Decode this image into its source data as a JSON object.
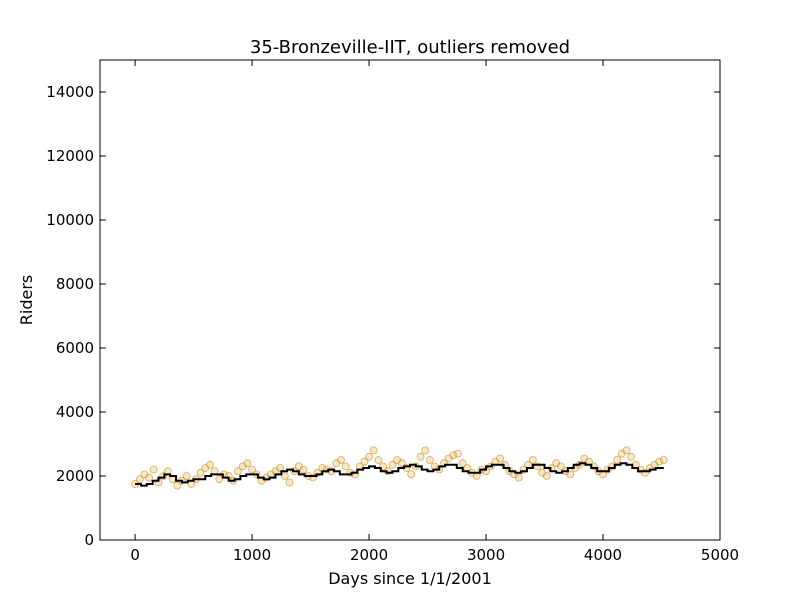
{
  "chart_data": {
    "type": "scatter",
    "title": "35-Bronzeville-IIT, outliers removed",
    "xlabel": "Days since 1/1/2001",
    "ylabel": "Riders",
    "xlim": [
      -300,
      5000
    ],
    "ylim": [
      0,
      15000
    ],
    "xticks": [
      0,
      1000,
      2000,
      3000,
      4000,
      5000
    ],
    "yticks": [
      0,
      2000,
      4000,
      6000,
      8000,
      10000,
      12000,
      14000
    ],
    "grid": false,
    "legend": "none",
    "colors": {
      "scatter_fill": "#f5b94a",
      "scatter_edge": "#a06a00",
      "trend_line": "#000000"
    },
    "series": [
      {
        "kind": "scatter",
        "x": [
          0,
          40,
          80,
          120,
          160,
          200,
          240,
          280,
          320,
          360,
          400,
          440,
          480,
          520,
          560,
          600,
          640,
          680,
          720,
          760,
          800,
          840,
          880,
          920,
          960,
          1000,
          1040,
          1080,
          1120,
          1160,
          1200,
          1240,
          1280,
          1320,
          1360,
          1400,
          1440,
          1480,
          1520,
          1560,
          1600,
          1640,
          1680,
          1720,
          1760,
          1800,
          1840,
          1880,
          1920,
          1960,
          2000,
          2040,
          2080,
          2120,
          2160,
          2200,
          2240,
          2280,
          2320,
          2360,
          2400,
          2440,
          2480,
          2520,
          2560,
          2600,
          2640,
          2680,
          2720,
          2760,
          2800,
          2840,
          2880,
          2920,
          2960,
          3000,
          3040,
          3080,
          3120,
          3160,
          3200,
          3240,
          3280,
          3320,
          3360,
          3400,
          3440,
          3480,
          3520,
          3560,
          3600,
          3640,
          3680,
          3720,
          3760,
          3800,
          3840,
          3880,
          3920,
          3960,
          4000,
          4040,
          4080,
          4120,
          4160,
          4200,
          4240,
          4280,
          4320,
          4360,
          4400,
          4440,
          4480,
          4520
        ],
        "y": [
          1750,
          1900,
          2050,
          1950,
          2200,
          1800,
          2000,
          2150,
          1900,
          1700,
          1850,
          2000,
          1750,
          1900,
          2100,
          2250,
          2350,
          2150,
          1900,
          2050,
          2000,
          1850,
          2150,
          2300,
          2400,
          2200,
          2050,
          1850,
          1950,
          2050,
          2150,
          2250,
          2000,
          1800,
          2150,
          2300,
          2200,
          2000,
          1950,
          2100,
          2250,
          2200,
          2150,
          2400,
          2500,
          2300,
          2100,
          2050,
          2300,
          2450,
          2600,
          2800,
          2500,
          2300,
          2150,
          2350,
          2500,
          2400,
          2250,
          2050,
          2300,
          2600,
          2800,
          2500,
          2300,
          2200,
          2400,
          2550,
          2650,
          2700,
          2400,
          2250,
          2100,
          2000,
          2200,
          2150,
          2300,
          2450,
          2550,
          2350,
          2150,
          2050,
          1950,
          2200,
          2350,
          2500,
          2300,
          2100,
          2000,
          2250,
          2400,
          2300,
          2150,
          2050,
          2250,
          2350,
          2550,
          2450,
          2300,
          2150,
          2050,
          2200,
          2300,
          2500,
          2700,
          2800,
          2600,
          2350,
          2200,
          2100,
          2250,
          2350,
          2450,
          2500
        ]
      },
      {
        "kind": "line",
        "x": [
          0,
          50,
          100,
          150,
          200,
          250,
          300,
          350,
          400,
          450,
          500,
          550,
          600,
          650,
          700,
          750,
          800,
          850,
          900,
          950,
          1000,
          1050,
          1100,
          1150,
          1200,
          1250,
          1300,
          1350,
          1400,
          1450,
          1500,
          1550,
          1600,
          1650,
          1700,
          1750,
          1800,
          1850,
          1900,
          1950,
          2000,
          2050,
          2100,
          2150,
          2200,
          2250,
          2300,
          2350,
          2400,
          2450,
          2500,
          2550,
          2600,
          2650,
          2700,
          2750,
          2800,
          2850,
          2900,
          2950,
          3000,
          3050,
          3100,
          3150,
          3200,
          3250,
          3300,
          3350,
          3400,
          3450,
          3500,
          3550,
          3600,
          3650,
          3700,
          3750,
          3800,
          3850,
          3900,
          3950,
          4000,
          4050,
          4100,
          4150,
          4200,
          4250,
          4300,
          4350,
          4400,
          4450,
          4500,
          4520
        ],
        "y": [
          1750,
          1700,
          1750,
          1850,
          1950,
          2050,
          2000,
          1850,
          1800,
          1850,
          1900,
          1900,
          2000,
          2050,
          2050,
          1950,
          1850,
          1900,
          2000,
          2050,
          2050,
          1950,
          1900,
          1950,
          2050,
          2150,
          2200,
          2150,
          2050,
          2000,
          2000,
          2050,
          2150,
          2200,
          2150,
          2050,
          2050,
          2100,
          2200,
          2250,
          2300,
          2250,
          2150,
          2100,
          2150,
          2250,
          2300,
          2350,
          2300,
          2200,
          2150,
          2200,
          2300,
          2350,
          2350,
          2250,
          2150,
          2100,
          2100,
          2200,
          2300,
          2350,
          2350,
          2250,
          2150,
          2100,
          2150,
          2250,
          2350,
          2350,
          2250,
          2150,
          2100,
          2150,
          2250,
          2350,
          2400,
          2350,
          2250,
          2150,
          2150,
          2250,
          2350,
          2400,
          2350,
          2250,
          2150,
          2150,
          2200,
          2250,
          2250,
          2250
        ]
      }
    ]
  }
}
